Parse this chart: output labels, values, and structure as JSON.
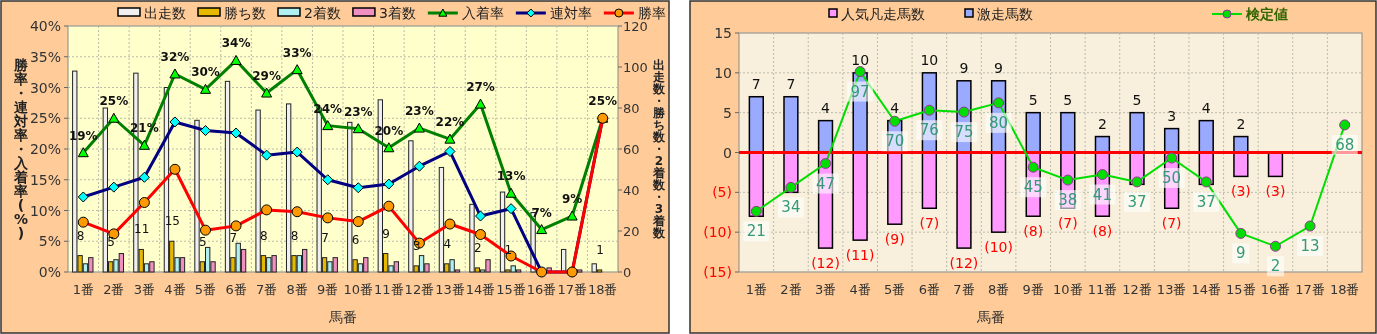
{
  "chart_data": [
    {
      "type": "bar",
      "categories": [
        "1番",
        "2番",
        "3番",
        "4番",
        "5番",
        "6番",
        "7番",
        "8番",
        "9番",
        "10番",
        "11番",
        "12番",
        "13番",
        "14番",
        "15番",
        "16番",
        "17番",
        "18番"
      ],
      "xlabel": "馬番",
      "ylabel": "勝率・連対率・入着率(%)",
      "y2label": "出走数・勝ち数・2着数・3着数",
      "ylim": [
        0,
        40
      ],
      "yticks": [
        {
          "value": 0,
          "label": "0%"
        },
        {
          "value": 5,
          "label": "5%"
        },
        {
          "value": 10,
          "label": "10%"
        },
        {
          "value": 15,
          "label": "15%"
        },
        {
          "value": 20,
          "label": "20%"
        },
        {
          "value": 25,
          "label": "25%"
        },
        {
          "value": 30,
          "label": "30%"
        },
        {
          "value": 35,
          "label": "35%"
        },
        {
          "value": 40,
          "label": "40%"
        }
      ],
      "y2lim": [
        0,
        120
      ],
      "y2ticks": [
        0,
        20,
        40,
        60,
        80,
        100,
        120
      ],
      "grid": true,
      "legend": "top",
      "series": [
        {
          "name": "出走数",
          "axis": "y2",
          "color": "#f0f0f0",
          "values": [
            98,
            80,
            97,
            90,
            74,
            93,
            79,
            82,
            80,
            73,
            84,
            64,
            51,
            33,
            39,
            29,
            11,
            4
          ]
        },
        {
          "name": "勝ち数",
          "axis": "y2",
          "color": "#e6b800",
          "values": [
            8,
            5,
            11,
            15,
            5,
            7,
            8,
            8,
            7,
            6,
            9,
            3,
            4,
            2,
            1,
            0,
            0,
            1
          ],
          "value_labels": [
            "8",
            "5",
            "11",
            "15",
            "5",
            "7",
            "8",
            "8",
            "7",
            "6",
            "9",
            "3",
            "4",
            "2",
            "1",
            null,
            null,
            "1"
          ]
        },
        {
          "name": "2着数",
          "axis": "y2",
          "color": "#b0f0f0",
          "values": [
            4,
            6,
            4,
            7,
            12,
            14,
            7,
            8,
            5,
            4,
            3,
            8,
            6,
            1,
            3,
            0,
            0,
            0
          ]
        },
        {
          "name": "3着数",
          "axis": "y2",
          "color": "#f090c0",
          "values": [
            7,
            9,
            5,
            7,
            5,
            11,
            8,
            11,
            7,
            7,
            5,
            4,
            1,
            6,
            1,
            2,
            1,
            0
          ]
        },
        {
          "name": "入着率",
          "type": "line",
          "marker": "triangle",
          "color": "#008000",
          "values": [
            19.4,
            25.0,
            20.6,
            32.2,
            29.7,
            34.4,
            29.1,
            32.9,
            23.8,
            23.3,
            20.2,
            23.4,
            21.6,
            27.3,
            12.8,
            6.9,
            9.1,
            25.0
          ],
          "value_labels": [
            "19%",
            "25%",
            "21%",
            "32%",
            "30%",
            "34%",
            "29%",
            "33%",
            "24%",
            "23%",
            "20%",
            "23%",
            "22%",
            "27%",
            "13%",
            "7%",
            "9%",
            "25%"
          ]
        },
        {
          "name": "連対率",
          "type": "line",
          "marker": "diamond",
          "color": "#000080",
          "values": [
            12.2,
            13.8,
            15.4,
            24.4,
            23.0,
            22.6,
            19.0,
            19.5,
            15.0,
            13.7,
            14.3,
            17.2,
            19.6,
            9.1,
            10.3,
            0,
            0,
            25.0
          ]
        },
        {
          "name": "勝率",
          "type": "line",
          "marker": "circle",
          "color": "#ff0000",
          "values": [
            8.1,
            6.2,
            11.3,
            16.7,
            6.8,
            7.5,
            10.1,
            9.8,
            8.8,
            8.2,
            10.7,
            4.7,
            7.8,
            6.1,
            2.6,
            0,
            0,
            25.0
          ]
        }
      ]
    },
    {
      "type": "bar",
      "stacked": true,
      "categories": [
        "1番",
        "2番",
        "3番",
        "4番",
        "5番",
        "6番",
        "7番",
        "8番",
        "9番",
        "10番",
        "11番",
        "12番",
        "13番",
        "14番",
        "15番",
        "16番",
        "17番",
        "18番"
      ],
      "xlabel": "馬番",
      "ylim": [
        -15,
        15
      ],
      "yticks": [
        {
          "value": -15,
          "label": "(15)"
        },
        {
          "value": -10,
          "label": "(10)"
        },
        {
          "value": -5,
          "label": "(5)"
        },
        {
          "value": 0,
          "label": "0"
        },
        {
          "value": 5,
          "label": "5"
        },
        {
          "value": 10,
          "label": "10"
        },
        {
          "value": 15,
          "label": "15"
        }
      ],
      "y2lim": [
        -12,
        118
      ],
      "grid": true,
      "legend": "top",
      "ref_lines": [
        {
          "axis": "y",
          "value": 0,
          "color": "#ff0000"
        }
      ],
      "series": [
        {
          "name": "人気凡走馬数",
          "color": "#ff99ff",
          "values": [
            -8,
            -5,
            -12,
            -11,
            -9,
            -7,
            -12,
            -10,
            -8,
            -7,
            -8,
            -4,
            -7,
            -4,
            -3,
            -3,
            0,
            0
          ],
          "value_labels": [
            null,
            null,
            "(12)",
            "(11)",
            "(9)",
            "(7)",
            "(12)",
            "(10)",
            "(8)",
            "(7)",
            "(8)",
            null,
            "(7)",
            null,
            "(3)",
            "(3)",
            null,
            null
          ]
        },
        {
          "name": "激走馬数",
          "color": "#99aaff",
          "values": [
            7,
            7,
            4,
            10,
            4,
            10,
            9,
            9,
            5,
            5,
            2,
            5,
            3,
            4,
            2,
            0,
            0,
            0
          ],
          "value_labels": [
            "7",
            "7",
            "4",
            "10",
            "4",
            "10",
            "9",
            "9",
            "5",
            "5",
            "2",
            "5",
            "3",
            "4",
            "2",
            null,
            null,
            null
          ]
        },
        {
          "name": "検定値",
          "type": "line",
          "axis": "y2",
          "marker": "circle",
          "color": "#00dd00",
          "values": [
            21,
            34,
            47,
            97,
            70,
            76,
            75,
            80,
            45,
            38,
            41,
            37,
            50,
            37,
            9,
            2,
            13,
            68
          ],
          "value_labels": [
            "21",
            "34",
            "47",
            "97",
            "70",
            "76",
            "75",
            "80",
            "45",
            "38",
            "41",
            "37",
            "50",
            "37",
            "9",
            "2",
            "13",
            "68"
          ]
        }
      ]
    }
  ]
}
